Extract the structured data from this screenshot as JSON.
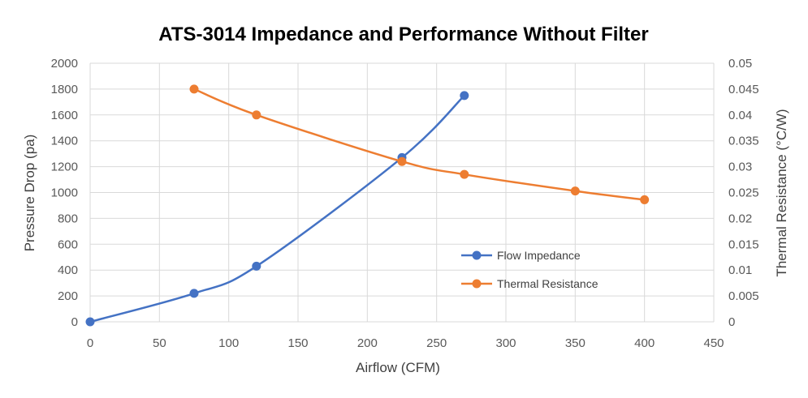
{
  "chart_data": {
    "type": "line",
    "title": "ATS-3014 Impedance and Performance Without Filter",
    "xlabel": "Airflow (CFM)",
    "ylabel": "Pressure Drop (pa)",
    "y2label": "Thermal Resistance (°C/W)",
    "xlim": [
      0,
      450
    ],
    "ylim": [
      0,
      2000
    ],
    "y2lim": [
      0,
      0.05
    ],
    "x_ticks": [
      "0",
      "50",
      "100",
      "150",
      "200",
      "250",
      "300",
      "350",
      "400",
      "450"
    ],
    "y_ticks": [
      "0",
      "200",
      "400",
      "600",
      "800",
      "1000",
      "1200",
      "1400",
      "1600",
      "1800",
      "2000"
    ],
    "y2_ticks": [
      "0",
      "0.005",
      "0.01",
      "0.015",
      "0.02",
      "0.025",
      "0.03",
      "0.035",
      "0.04",
      "0.045",
      "0.05"
    ],
    "grid": true,
    "legend_position": "center-right",
    "series": [
      {
        "name": "Flow Impedance",
        "axis": "left",
        "color": "#4472C4",
        "x": [
          0,
          75,
          120,
          225,
          270
        ],
        "y": [
          0,
          220,
          430,
          1270,
          1750
        ]
      },
      {
        "name": "Thermal Resistance",
        "axis": "right",
        "color": "#ED7D31",
        "x": [
          75,
          120,
          225,
          270,
          350,
          400
        ],
        "y": [
          0.045,
          0.04,
          0.031,
          0.0285,
          0.0253,
          0.0236
        ]
      }
    ]
  }
}
